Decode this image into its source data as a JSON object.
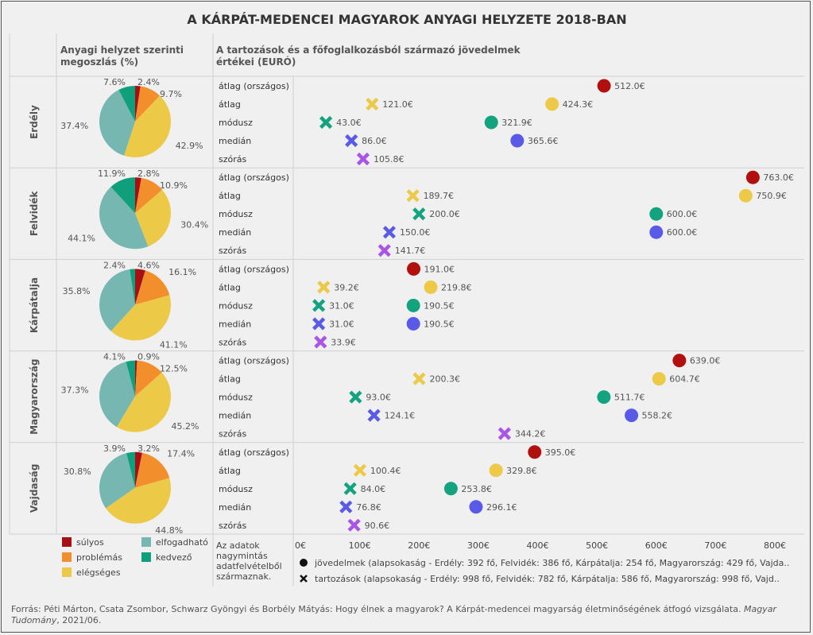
{
  "title": "A KÁRPÁT-MEDENCEI MAGYAROK ANYAGI HELYZETE 2018-BAN",
  "pie_header": [
    "Anyagi helyzet szerinti",
    "megoszlás (%)"
  ],
  "dot_header": [
    "A tartozások és a főfoglalkozásból származó jövedelmek",
    "értékei (EURÓ)"
  ],
  "stat_labels": [
    "átlag (országos)",
    "átlag",
    "módusz",
    "medián",
    "szórás"
  ],
  "category_colors": {
    "súlyos": "#a50f15",
    "problémás": "#f28e2b",
    "elégséges": "#edc948",
    "elfogadható": "#76b7b2",
    "kedvező": "#0f9f7a"
  },
  "stat_colors": {
    "átlag (országos)": "#b20f0f",
    "átlag": "#edc948",
    "módusz": "#13a37f",
    "medián": "#5a5ae8",
    "szórás": "#a855e8"
  },
  "chart_data": {
    "type": "pie",
    "regions": [
      {
        "name": "Erdély",
        "pie": {
          "súlyos": 2.4,
          "problémás": 9.7,
          "elégséges": 42.9,
          "elfogadható": 37.4,
          "kedvező": 7.6
        },
        "pie_labels": [
          "2.4%",
          "9.7%",
          "42.9%",
          "37.4%",
          "7.6%"
        ],
        "income": {
          "átlag (országos)": 512.0,
          "átlag": 424.3,
          "módusz": 321.9,
          "medián": 365.6
        },
        "income_labels": [
          "512.0€",
          "424.3€",
          "321.9€",
          "365.6€"
        ],
        "debt": {
          "átlag": 121.0,
          "módusz": 43.0,
          "medián": 86.0,
          "szórás": 105.8
        },
        "debt_labels": [
          "121.0€",
          "43.0€",
          "86.0€",
          "105.8€"
        ]
      },
      {
        "name": "Felvidék",
        "pie": {
          "súlyos": 2.8,
          "problémás": 10.9,
          "elégséges": 30.4,
          "elfogadható": 44.1,
          "kedvező": 11.9
        },
        "pie_labels": [
          "2.8%",
          "10.9%",
          "30.4%",
          "44.1%",
          "11.9%"
        ],
        "income": {
          "átlag (országos)": 763.0,
          "átlag": 750.9,
          "módusz": 600.0,
          "medián": 600.0
        },
        "income_labels": [
          "763.0€",
          "750.9€",
          "600.0€",
          "600.0€"
        ],
        "debt": {
          "átlag": 189.7,
          "módusz": 200.0,
          "medián": 150.0,
          "szórás": 141.7
        },
        "debt_labels": [
          "189.7€",
          "200.0€",
          "150.0€",
          "141.7€"
        ]
      },
      {
        "name": "Kárpátalja",
        "pie": {
          "súlyos": 4.6,
          "problémás": 16.1,
          "elégséges": 41.1,
          "elfogadható": 35.8,
          "kedvező": 2.4
        },
        "pie_labels": [
          "4.6%",
          "16.1%",
          "41.1%",
          "35.8%",
          "2.4%"
        ],
        "income": {
          "átlag (országos)": 191.0,
          "átlag": 219.8,
          "módusz": 190.5,
          "medián": 190.5
        },
        "income_labels": [
          "191.0€",
          "219.8€",
          "190.5€",
          "190.5€"
        ],
        "debt": {
          "átlag": 39.2,
          "módusz": 31.0,
          "medián": 31.0,
          "szórás": 33.9
        },
        "debt_labels": [
          "39.2€",
          "31.0€",
          "31.0€",
          "33.9€"
        ]
      },
      {
        "name": "Magyarország",
        "pie": {
          "súlyos": 0.9,
          "problémás": 12.5,
          "elégséges": 45.2,
          "elfogadható": 37.3,
          "kedvező": 4.1
        },
        "pie_labels": [
          "0.9%",
          "12.5%",
          "45.2%",
          "37.3%",
          "4.1%"
        ],
        "income": {
          "átlag (országos)": 639.0,
          "átlag": 604.7,
          "módusz": 511.7,
          "medián": 558.2
        },
        "income_labels": [
          "639.0€",
          "604.7€",
          "511.7€",
          "558.2€"
        ],
        "debt": {
          "átlag": 200.3,
          "módusz": 93.0,
          "medián": 124.1,
          "szórás": 344.2
        },
        "debt_labels": [
          "200.3€",
          "93.0€",
          "124.1€",
          "344.2€"
        ]
      },
      {
        "name": "Vajdaság",
        "pie": {
          "súlyos": 3.2,
          "problémás": 17.4,
          "elégséges": 44.8,
          "elfogadható": 30.8,
          "kedvező": 3.9
        },
        "pie_labels": [
          "3.2%",
          "17.4%",
          "44.8%",
          "30.8%",
          "3.9%"
        ],
        "income": {
          "átlag (országos)": 395.0,
          "átlag": 329.8,
          "módusz": 253.8,
          "medián": 296.1
        },
        "income_labels": [
          "395.0€",
          "329.8€",
          "253.8€",
          "296.1€"
        ],
        "debt": {
          "átlag": 100.4,
          "módusz": 84.0,
          "medián": 76.8,
          "szórás": 90.6
        },
        "debt_labels": [
          "100.4€",
          "84.0€",
          "76.8€",
          "90.6€"
        ]
      }
    ],
    "x_axis": {
      "min": 0,
      "max": 800,
      "ticks": [
        "0€",
        "100€",
        "200€",
        "300€",
        "400€",
        "500€",
        "600€",
        "700€",
        "800€"
      ],
      "tick_values": [
        0,
        100,
        200,
        300,
        400,
        500,
        600,
        700,
        800
      ]
    },
    "legend_categories": [
      "súlyos",
      "elfogadható",
      "problémás",
      "kedvező",
      "elégséges"
    ]
  },
  "note": [
    "Az adatok",
    "nagymintás",
    "adatfelvételből",
    "származnak."
  ],
  "marker_legend": {
    "income": "jövedelmek (alapsokaság - Erdély: 392 fő, Felvidék: 386 fő, Kárpátalja: 254 fő, Magyarország: 429 fő, Vajda..",
    "debt": "tartozások (alapsokaság - Erdély: 998 fő, Felvidék: 782 fő, Kárpátalja: 586 fő, Magyarország: 998 fő, Vajd.."
  },
  "source": {
    "line1": "Forrás: Péti Márton, Csata Zsombor, Schwarz Gyöngyi és Borbély Mátyás: Hogy élnek a magyarok? A Kárpát-medencei magyarság életminőségének átfogó vizsgálata.",
    "line1_italic": "Magyar",
    "line2_italic": "Tudomány",
    "line2": ", 2021/06."
  }
}
